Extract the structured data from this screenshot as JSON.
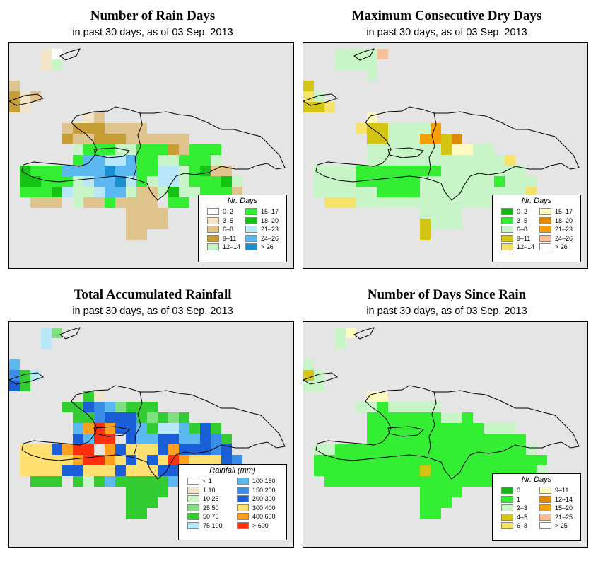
{
  "panels": [
    {
      "title": "Number of Rain Days",
      "subtitle": "in past 30 days, as of  03 Sep. 2013",
      "legend_title": "Nr. Days",
      "legend": [
        {
          "label": "0–2",
          "color": "#ffffff"
        },
        {
          "label": "3–5",
          "color": "#f3e5c8"
        },
        {
          "label": "6–8",
          "color": "#e0c48e"
        },
        {
          "label": "9–11",
          "color": "#c79d35"
        },
        {
          "label": "12–14",
          "color": "#c8f5c8"
        },
        {
          "label": "15–17",
          "color": "#33ee33"
        },
        {
          "label": "18–20",
          "color": "#14c314"
        },
        {
          "label": "21–23",
          "color": "#b8e8f8"
        },
        {
          "label": "24–26",
          "color": "#5cb8f0"
        },
        {
          "label": "> 26",
          "color": "#1a8ecf"
        }
      ]
    },
    {
      "title": "Maximum Consecutive Dry Days",
      "subtitle": "in past 30 days, as of  03 Sep. 2013",
      "legend_title": "Nr. Days",
      "legend": [
        {
          "label": "0–2",
          "color": "#14b414"
        },
        {
          "label": "3–5",
          "color": "#33ee33"
        },
        {
          "label": "6–8",
          "color": "#c8f5c8"
        },
        {
          "label": "9–11",
          "color": "#d4c414"
        },
        {
          "label": "12–14",
          "color": "#f5e26a"
        },
        {
          "label": "15–17",
          "color": "#fffac0"
        },
        {
          "label": "18–20",
          "color": "#e08a00"
        },
        {
          "label": "21–23",
          "color": "#f5a000"
        },
        {
          "label": "24–26",
          "color": "#f8c09a"
        },
        {
          "label": "> 26",
          "color": "#ffffff"
        }
      ]
    },
    {
      "title": "Total Accumulated Rainfall",
      "subtitle": "in past 30 days, as of  03 Sep. 2013",
      "legend_title": "Rainfall (mm)",
      "legend": [
        {
          "label": "< 1",
          "color": "#ffffff"
        },
        {
          "label": "1    10",
          "color": "#f3e5c8"
        },
        {
          "label": "10    25",
          "color": "#c8f5c8"
        },
        {
          "label": "25    50",
          "color": "#80e080"
        },
        {
          "label": "50    75",
          "color": "#33cc33"
        },
        {
          "label": "75   100",
          "color": "#b8e8f8"
        },
        {
          "label": "100  150",
          "color": "#5cb8f0"
        },
        {
          "label": "150  200",
          "color": "#3a8ee8"
        },
        {
          "label": "200  300",
          "color": "#1a5ed8"
        },
        {
          "label": "300  400",
          "color": "#ffe070"
        },
        {
          "label": "400  600",
          "color": "#ffa020"
        },
        {
          "label": "> 600",
          "color": "#ff3010"
        }
      ]
    },
    {
      "title": "Number of Days Since Rain",
      "subtitle": "in past 30 days, as of  03 Sep. 2013",
      "legend_title": "Nr. Days",
      "legend": [
        {
          "label": "0",
          "color": "#14b414"
        },
        {
          "label": "1",
          "color": "#33ee33"
        },
        {
          "label": "2–3",
          "color": "#c8f5c8"
        },
        {
          "label": "4–5",
          "color": "#d4c414"
        },
        {
          "label": "6–8",
          "color": "#f5e26a"
        },
        {
          "label": "9–11",
          "color": "#fffac0"
        },
        {
          "label": "12–14",
          "color": "#e08a00"
        },
        {
          "label": "15–20",
          "color": "#f5a000"
        },
        {
          "label": "21–25",
          "color": "#f8c09a"
        },
        {
          "label": "> 25",
          "color": "#ffffff"
        }
      ]
    }
  ],
  "colors": {
    "map_background": "#e5e5e5",
    "outline": "#000000"
  }
}
